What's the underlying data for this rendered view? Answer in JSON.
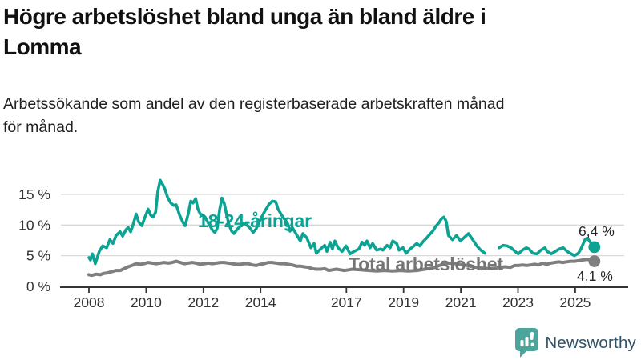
{
  "header": {
    "title": "Högre arbetslöshet bland unga än bland äldre i\nLomma",
    "subtitle": "Arbetssökande som andel av den registerbaserade arbetskraften månad\nför månad."
  },
  "footer": {
    "brand": "Newsworthy"
  },
  "colors": {
    "youth_line": "#0da393",
    "total_line": "#7f7f7f",
    "axis": "#333333",
    "gridline": "#d9d9d9",
    "logo_teal": "#4da49b",
    "wordmark": "#2e5266"
  },
  "chart_data": {
    "type": "line",
    "title": "Högre arbetslöshet bland unga än bland äldre i Lomma",
    "xlabel": "",
    "ylabel": "",
    "grid": true,
    "xlim": [
      2007,
      2026.7
    ],
    "ylim": [
      0,
      18
    ],
    "x_axis": {
      "ticks": [
        {
          "v": 2008,
          "label": "2008"
        },
        {
          "v": 2010,
          "label": "2010"
        },
        {
          "v": 2012,
          "label": "2012"
        },
        {
          "v": 2014,
          "label": "2014"
        },
        {
          "v": 2017,
          "label": "2017"
        },
        {
          "v": 2019,
          "label": "2019"
        },
        {
          "v": 2021,
          "label": "2021"
        },
        {
          "v": 2023,
          "label": "2023"
        },
        {
          "v": 2025,
          "label": "2025"
        }
      ]
    },
    "y_axis": {
      "unit": "%",
      "ticks": [
        {
          "v": 0,
          "label": "0 %"
        },
        {
          "v": 5,
          "label": "5 %"
        },
        {
          "v": 10,
          "label": "10 %"
        },
        {
          "v": 15,
          "label": "15 %"
        }
      ]
    },
    "series": [
      {
        "name": "18-24-åringar",
        "color": "#0da393",
        "stroke_width": 3.6,
        "end_value": 6.4,
        "end_label": "6,4 %",
        "points": [
          [
            2008.0,
            4.7
          ],
          [
            2008.05,
            4.3
          ],
          [
            2008.12,
            5.3
          ],
          [
            2008.22,
            3.7
          ],
          [
            2008.36,
            5.7
          ],
          [
            2008.48,
            6.6
          ],
          [
            2008.62,
            6.3
          ],
          [
            2008.73,
            7.6
          ],
          [
            2008.84,
            7.0
          ],
          [
            2008.95,
            8.3
          ],
          [
            2009.09,
            8.9
          ],
          [
            2009.18,
            8.2
          ],
          [
            2009.29,
            9.2
          ],
          [
            2009.37,
            9.6
          ],
          [
            2009.46,
            8.9
          ],
          [
            2009.54,
            10.0
          ],
          [
            2009.65,
            11.8
          ],
          [
            2009.74,
            10.5
          ],
          [
            2009.85,
            9.9
          ],
          [
            2009.96,
            11.3
          ],
          [
            2010.07,
            12.6
          ],
          [
            2010.16,
            11.6
          ],
          [
            2010.24,
            11.3
          ],
          [
            2010.33,
            12.1
          ],
          [
            2010.41,
            15.5
          ],
          [
            2010.49,
            17.3
          ],
          [
            2010.58,
            16.6
          ],
          [
            2010.66,
            15.8
          ],
          [
            2010.75,
            14.5
          ],
          [
            2010.86,
            13.6
          ],
          [
            2010.97,
            13.2
          ],
          [
            2011.05,
            13.3
          ],
          [
            2011.17,
            11.6
          ],
          [
            2011.28,
            10.5
          ],
          [
            2011.36,
            9.9
          ],
          [
            2011.47,
            11.8
          ],
          [
            2011.56,
            13.9
          ],
          [
            2011.64,
            13.6
          ],
          [
            2011.73,
            14.3
          ],
          [
            2011.81,
            12.6
          ],
          [
            2011.89,
            11.8
          ],
          [
            2011.98,
            11.6
          ],
          [
            2012.06,
            11.3
          ],
          [
            2012.15,
            10.5
          ],
          [
            2012.23,
            9.9
          ],
          [
            2012.31,
            9.2
          ],
          [
            2012.4,
            8.8
          ],
          [
            2012.48,
            9.4
          ],
          [
            2012.57,
            12.5
          ],
          [
            2012.65,
            14.4
          ],
          [
            2012.73,
            13.5
          ],
          [
            2012.82,
            11.5
          ],
          [
            2012.9,
            10.0
          ],
          [
            2012.99,
            9.0
          ],
          [
            2013.07,
            8.6
          ],
          [
            2013.18,
            9.3
          ],
          [
            2013.29,
            9.8
          ],
          [
            2013.41,
            10.3
          ],
          [
            2013.52,
            10.0
          ],
          [
            2013.63,
            9.5
          ],
          [
            2013.74,
            8.8
          ],
          [
            2013.85,
            9.4
          ],
          [
            2013.96,
            10.6
          ],
          [
            2014.08,
            11.7
          ],
          [
            2014.19,
            12.6
          ],
          [
            2014.3,
            13.4
          ],
          [
            2014.41,
            13.9
          ],
          [
            2014.53,
            13.8
          ],
          [
            2014.61,
            12.6
          ],
          [
            2014.69,
            12.0
          ],
          [
            2014.78,
            11.3
          ],
          [
            2014.86,
            10.8
          ],
          [
            2014.95,
            10.2
          ],
          [
            2015.03,
            9.0
          ],
          [
            2015.11,
            9.6
          ],
          [
            2015.2,
            8.9
          ],
          [
            2015.39,
            7.4
          ],
          [
            2015.48,
            8.6
          ],
          [
            2015.62,
            7.9
          ],
          [
            2015.76,
            6.3
          ],
          [
            2015.87,
            7.0
          ],
          [
            2015.95,
            5.4
          ],
          [
            2016.1,
            6.1
          ],
          [
            2016.24,
            6.7
          ],
          [
            2016.32,
            5.7
          ],
          [
            2016.43,
            7.2
          ],
          [
            2016.51,
            6.1
          ],
          [
            2016.6,
            7.4
          ],
          [
            2016.71,
            6.3
          ],
          [
            2016.85,
            5.7
          ],
          [
            2016.99,
            6.6
          ],
          [
            2017.13,
            5.3
          ],
          [
            2017.27,
            5.7
          ],
          [
            2017.44,
            6.1
          ],
          [
            2017.55,
            7.2
          ],
          [
            2017.64,
            6.7
          ],
          [
            2017.72,
            7.4
          ],
          [
            2017.83,
            6.3
          ],
          [
            2017.92,
            7.0
          ],
          [
            2018.06,
            5.9
          ],
          [
            2018.2,
            6.1
          ],
          [
            2018.28,
            5.9
          ],
          [
            2018.42,
            6.7
          ],
          [
            2018.53,
            6.3
          ],
          [
            2018.62,
            7.4
          ],
          [
            2018.76,
            7.0
          ],
          [
            2018.84,
            5.9
          ],
          [
            2018.98,
            6.3
          ],
          [
            2019.09,
            5.4
          ],
          [
            2019.23,
            6.1
          ],
          [
            2019.34,
            6.5
          ],
          [
            2019.46,
            7.0
          ],
          [
            2019.57,
            6.6
          ],
          [
            2019.68,
            7.3
          ],
          [
            2019.79,
            7.8
          ],
          [
            2019.9,
            8.4
          ],
          [
            2020.02,
            9.0
          ],
          [
            2020.13,
            9.8
          ],
          [
            2020.24,
            10.4
          ],
          [
            2020.32,
            11.0
          ],
          [
            2020.41,
            11.3
          ],
          [
            2020.49,
            10.6
          ],
          [
            2020.57,
            8.3
          ],
          [
            2020.71,
            7.6
          ],
          [
            2020.85,
            8.3
          ],
          [
            2020.99,
            7.4
          ],
          [
            2021.13,
            8.0
          ],
          [
            2021.27,
            8.6
          ],
          [
            2021.42,
            7.6
          ],
          [
            2021.56,
            6.6
          ],
          [
            2021.7,
            5.9
          ],
          [
            2021.84,
            5.4
          ],
          [
            2022.1,
            null
          ],
          [
            2022.34,
            6.3
          ],
          [
            2022.48,
            6.7
          ],
          [
            2022.62,
            6.6
          ],
          [
            2022.76,
            6.3
          ],
          [
            2022.9,
            5.7
          ],
          [
            2023.01,
            5.3
          ],
          [
            2023.15,
            5.9
          ],
          [
            2023.29,
            6.3
          ],
          [
            2023.38,
            6.1
          ],
          [
            2023.52,
            5.4
          ],
          [
            2023.66,
            5.3
          ],
          [
            2023.8,
            5.9
          ],
          [
            2023.94,
            6.3
          ],
          [
            2024.02,
            5.7
          ],
          [
            2024.16,
            5.3
          ],
          [
            2024.3,
            5.7
          ],
          [
            2024.44,
            6.1
          ],
          [
            2024.58,
            6.3
          ],
          [
            2024.72,
            5.7
          ],
          [
            2024.86,
            5.3
          ],
          [
            2024.97,
            5.0
          ],
          [
            2025.11,
            5.4
          ],
          [
            2025.2,
            6.1
          ],
          [
            2025.34,
            7.6
          ],
          [
            2025.42,
            7.9
          ],
          [
            2025.53,
            7.2
          ],
          [
            2025.62,
            6.6
          ],
          [
            2025.67,
            6.4
          ]
        ]
      },
      {
        "name": "Total arbetslöshet",
        "color": "#7f7f7f",
        "stroke_width": 4,
        "end_value": 4.1,
        "end_label": "4,1 %",
        "points": [
          [
            2008.0,
            1.9
          ],
          [
            2008.1,
            1.8
          ],
          [
            2008.25,
            2.0
          ],
          [
            2008.4,
            1.9
          ],
          [
            2008.5,
            2.1
          ],
          [
            2008.65,
            2.2
          ],
          [
            2008.8,
            2.4
          ],
          [
            2008.95,
            2.6
          ],
          [
            2009.1,
            2.6
          ],
          [
            2009.23,
            2.9
          ],
          [
            2009.37,
            3.2
          ],
          [
            2009.5,
            3.4
          ],
          [
            2009.65,
            3.7
          ],
          [
            2009.8,
            3.6
          ],
          [
            2009.93,
            3.7
          ],
          [
            2010.07,
            3.9
          ],
          [
            2010.21,
            3.8
          ],
          [
            2010.35,
            3.7
          ],
          [
            2010.49,
            3.8
          ],
          [
            2010.63,
            3.9
          ],
          [
            2010.77,
            3.8
          ],
          [
            2010.91,
            3.9
          ],
          [
            2011.05,
            4.1
          ],
          [
            2011.19,
            3.9
          ],
          [
            2011.33,
            3.7
          ],
          [
            2011.47,
            3.8
          ],
          [
            2011.61,
            3.9
          ],
          [
            2011.75,
            3.8
          ],
          [
            2011.89,
            3.6
          ],
          [
            2012.03,
            3.7
          ],
          [
            2012.17,
            3.8
          ],
          [
            2012.31,
            3.7
          ],
          [
            2012.45,
            3.8
          ],
          [
            2012.6,
            3.9
          ],
          [
            2012.73,
            3.9
          ],
          [
            2012.87,
            3.8
          ],
          [
            2013.01,
            3.7
          ],
          [
            2013.15,
            3.6
          ],
          [
            2013.29,
            3.6
          ],
          [
            2013.43,
            3.7
          ],
          [
            2013.57,
            3.7
          ],
          [
            2013.71,
            3.5
          ],
          [
            2013.85,
            3.4
          ],
          [
            2013.99,
            3.6
          ],
          [
            2014.13,
            3.7
          ],
          [
            2014.27,
            3.9
          ],
          [
            2014.41,
            3.9
          ],
          [
            2014.55,
            3.8
          ],
          [
            2014.69,
            3.7
          ],
          [
            2014.83,
            3.7
          ],
          [
            2014.97,
            3.6
          ],
          [
            2015.11,
            3.5
          ],
          [
            2015.25,
            3.3
          ],
          [
            2015.39,
            3.3
          ],
          [
            2015.53,
            3.2
          ],
          [
            2015.67,
            3.1
          ],
          [
            2015.81,
            2.9
          ],
          [
            2015.95,
            2.8
          ],
          [
            2016.1,
            2.8
          ],
          [
            2016.24,
            2.9
          ],
          [
            2016.38,
            2.6
          ],
          [
            2016.51,
            2.7
          ],
          [
            2016.65,
            2.8
          ],
          [
            2016.79,
            2.7
          ],
          [
            2016.93,
            2.6
          ],
          [
            2017.08,
            2.7
          ],
          [
            2017.21,
            2.8
          ],
          [
            2017.5,
            2.7
          ],
          [
            2017.8,
            2.6
          ],
          [
            2018.06,
            2.5
          ],
          [
            2018.34,
            2.6
          ],
          [
            2018.62,
            2.5
          ],
          [
            2018.9,
            2.6
          ],
          [
            2019.18,
            2.5
          ],
          [
            2019.46,
            2.6
          ],
          [
            2019.74,
            2.8
          ],
          [
            2020.02,
            3.0
          ],
          [
            2020.3,
            3.5
          ],
          [
            2020.44,
            3.7
          ],
          [
            2020.57,
            3.8
          ],
          [
            2020.85,
            3.7
          ],
          [
            2021.13,
            3.5
          ],
          [
            2021.42,
            3.2
          ],
          [
            2021.7,
            3.0
          ],
          [
            2021.98,
            2.9
          ],
          [
            2022.26,
            3.0
          ],
          [
            2022.54,
            3.2
          ],
          [
            2022.74,
            3.1
          ],
          [
            2022.88,
            3.4
          ],
          [
            2023.02,
            3.4
          ],
          [
            2023.16,
            3.5
          ],
          [
            2023.3,
            3.4
          ],
          [
            2023.44,
            3.5
          ],
          [
            2023.58,
            3.6
          ],
          [
            2023.72,
            3.5
          ],
          [
            2023.86,
            3.8
          ],
          [
            2024.0,
            3.6
          ],
          [
            2024.14,
            3.8
          ],
          [
            2024.28,
            3.9
          ],
          [
            2024.42,
            4.0
          ],
          [
            2024.56,
            3.9
          ],
          [
            2024.7,
            4.0
          ],
          [
            2024.84,
            4.1
          ],
          [
            2024.98,
            4.1
          ],
          [
            2025.12,
            4.2
          ],
          [
            2025.26,
            4.3
          ],
          [
            2025.4,
            4.4
          ],
          [
            2025.54,
            4.3
          ],
          [
            2025.67,
            4.1
          ]
        ]
      }
    ]
  }
}
